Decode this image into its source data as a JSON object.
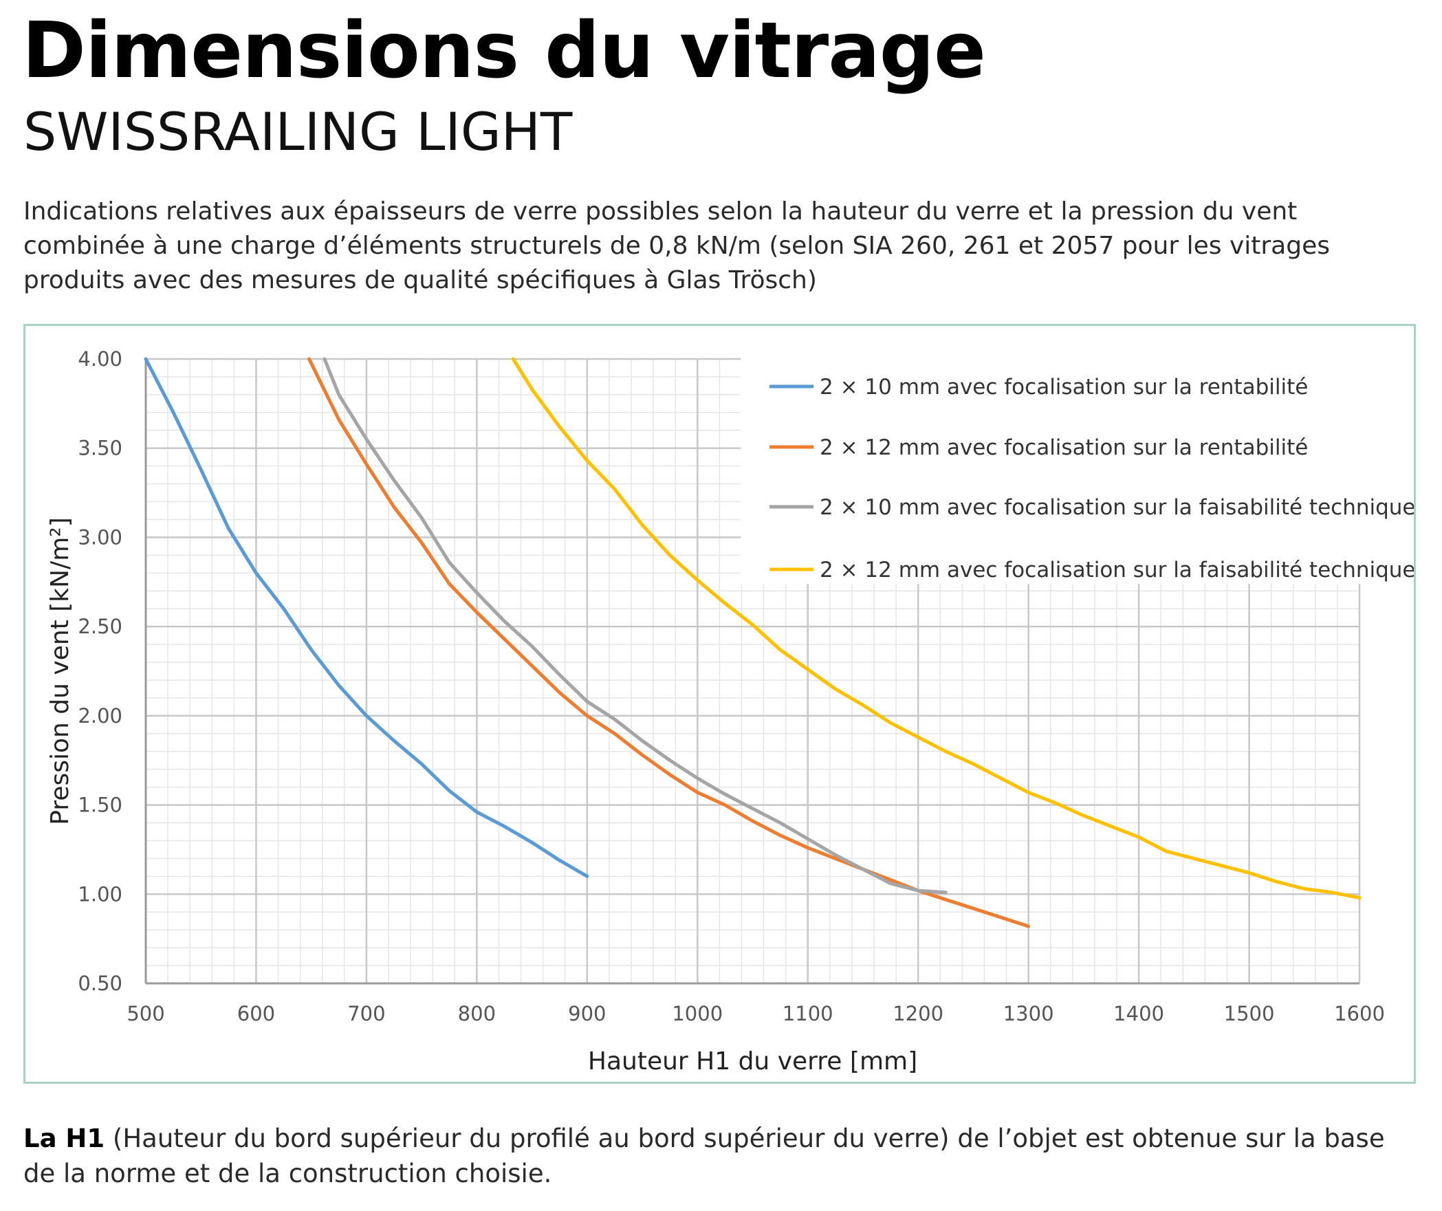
{
  "header": {
    "title": "Dimensions du vitrage",
    "subtitle": "SWISSRAILING LIGHT",
    "intro": "Indications relatives aux épaisseurs de verre possibles selon la hauteur du verre et la pression du vent combinée à une charge d’éléments structurels de 0,8 kN/m (selon SIA 260, 261 et 2057 pour les vitrages produits avec des mesures de qualité spécifiques à Glas Trösch)"
  },
  "chart_data": {
    "type": "line",
    "title": "",
    "xlabel": "Hauteur H1 du verre [mm]",
    "ylabel": "Pression du vent [kN/m²]",
    "xlim": [
      500,
      1600
    ],
    "ylim": [
      0.5,
      4.0
    ],
    "x_ticks": [
      "500",
      "600",
      "700",
      "800",
      "900",
      "1000",
      "1100",
      "1200",
      "1300",
      "1400",
      "1500",
      "1600"
    ],
    "y_ticks": [
      "0.50",
      "1.00",
      "1.50",
      "2.00",
      "2.50",
      "3.00",
      "3.50",
      "4.00"
    ],
    "grid": true,
    "legend_position": "top-right",
    "series": [
      {
        "name": "2 × 10 mm avec focalisation sur la rentabilité",
        "color": "#5b9bd5",
        "points": [
          [
            500,
            4.0
          ],
          [
            525,
            3.7
          ],
          [
            550,
            3.38
          ],
          [
            575,
            3.05
          ],
          [
            600,
            2.8
          ],
          [
            625,
            2.6
          ],
          [
            650,
            2.37
          ],
          [
            675,
            2.17
          ],
          [
            700,
            2.0
          ],
          [
            725,
            1.86
          ],
          [
            750,
            1.73
          ],
          [
            775,
            1.58
          ],
          [
            800,
            1.46
          ],
          [
            825,
            1.38
          ],
          [
            850,
            1.29
          ],
          [
            875,
            1.19
          ],
          [
            900,
            1.1
          ]
        ]
      },
      {
        "name": "2 × 12 mm avec focalisation sur la rentabilité",
        "color": "#ed7d31",
        "points": [
          [
            648,
            4.0
          ],
          [
            675,
            3.66
          ],
          [
            700,
            3.41
          ],
          [
            725,
            3.17
          ],
          [
            750,
            2.97
          ],
          [
            775,
            2.74
          ],
          [
            800,
            2.58
          ],
          [
            825,
            2.43
          ],
          [
            850,
            2.28
          ],
          [
            875,
            2.13
          ],
          [
            900,
            2.0
          ],
          [
            925,
            1.9
          ],
          [
            950,
            1.78
          ],
          [
            975,
            1.67
          ],
          [
            1000,
            1.57
          ],
          [
            1025,
            1.5
          ],
          [
            1050,
            1.41
          ],
          [
            1075,
            1.33
          ],
          [
            1100,
            1.26
          ],
          [
            1125,
            1.2
          ],
          [
            1150,
            1.14
          ],
          [
            1175,
            1.08
          ],
          [
            1200,
            1.02
          ],
          [
            1225,
            0.97
          ],
          [
            1250,
            0.92
          ],
          [
            1275,
            0.87
          ],
          [
            1300,
            0.82
          ]
        ]
      },
      {
        "name": "2 × 10 mm avec focalisation sur la faisabilité technique",
        "color": "#a5a5a5",
        "points": [
          [
            662,
            4.0
          ],
          [
            675,
            3.8
          ],
          [
            700,
            3.55
          ],
          [
            725,
            3.32
          ],
          [
            750,
            3.11
          ],
          [
            775,
            2.86
          ],
          [
            800,
            2.69
          ],
          [
            825,
            2.53
          ],
          [
            850,
            2.39
          ],
          [
            875,
            2.23
          ],
          [
            900,
            2.08
          ],
          [
            925,
            1.98
          ],
          [
            950,
            1.86
          ],
          [
            975,
            1.75
          ],
          [
            1000,
            1.65
          ],
          [
            1025,
            1.56
          ],
          [
            1050,
            1.48
          ],
          [
            1075,
            1.4
          ],
          [
            1100,
            1.31
          ],
          [
            1125,
            1.22
          ],
          [
            1150,
            1.14
          ],
          [
            1175,
            1.06
          ],
          [
            1200,
            1.02
          ],
          [
            1225,
            1.01
          ]
        ]
      },
      {
        "name": "2 × 12 mm avec focalisation sur la faisabilité technique",
        "color": "#ffc000",
        "points": [
          [
            833,
            4.0
          ],
          [
            850,
            3.83
          ],
          [
            875,
            3.62
          ],
          [
            900,
            3.43
          ],
          [
            925,
            3.27
          ],
          [
            950,
            3.07
          ],
          [
            975,
            2.9
          ],
          [
            1000,
            2.76
          ],
          [
            1025,
            2.63
          ],
          [
            1050,
            2.51
          ],
          [
            1075,
            2.37
          ],
          [
            1100,
            2.26
          ],
          [
            1125,
            2.15
          ],
          [
            1150,
            2.06
          ],
          [
            1175,
            1.96
          ],
          [
            1200,
            1.88
          ],
          [
            1225,
            1.8
          ],
          [
            1250,
            1.73
          ],
          [
            1275,
            1.65
          ],
          [
            1300,
            1.57
          ],
          [
            1325,
            1.51
          ],
          [
            1350,
            1.44
          ],
          [
            1375,
            1.38
          ],
          [
            1400,
            1.32
          ],
          [
            1425,
            1.24
          ],
          [
            1450,
            1.2
          ],
          [
            1475,
            1.16
          ],
          [
            1500,
            1.12
          ],
          [
            1525,
            1.07
          ],
          [
            1550,
            1.03
          ],
          [
            1575,
            1.01
          ],
          [
            1600,
            0.98
          ]
        ]
      }
    ]
  },
  "footnote": {
    "bold": "La H1",
    "text": " (Hauteur du bord supérieur du profilé au bord supérieur du verre) de l’objet est obtenue sur la base de la norme et de la construction choisie."
  }
}
